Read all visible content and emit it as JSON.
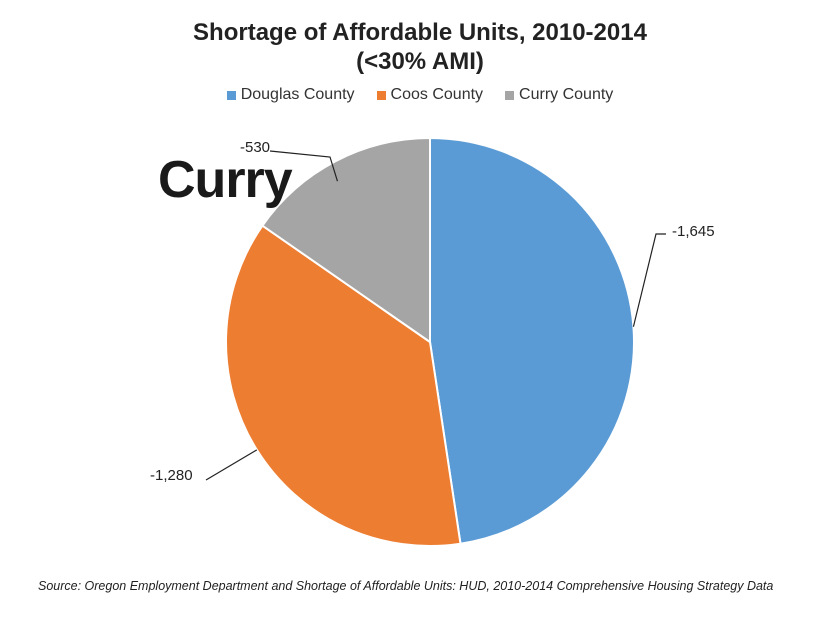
{
  "chart_data": {
    "type": "pie",
    "title": "Shortage of Affordable Units, 2010-2014",
    "subtitle": "(<30% AMI)",
    "categories": [
      "Douglas County",
      "Coos County",
      "Curry County"
    ],
    "values": [
      -1645,
      -1280,
      -530
    ],
    "data_labels": [
      "-1,645",
      "-1,280",
      "-530"
    ],
    "colors": [
      "#5b9bd5",
      "#ed7d31",
      "#a5a5a5"
    ],
    "legend_position": "top",
    "annotation": "Curry"
  },
  "source_text": "Source: Oregon Employment Department and Shortage of Affordable Units: HUD,  2010-2014 Comprehensive Housing Strategy Data"
}
